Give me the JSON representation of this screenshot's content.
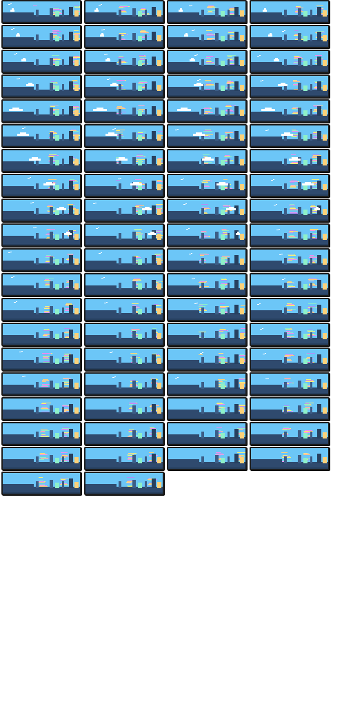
{
  "sprite_sheet": {
    "columns": 4,
    "frame_count": 78,
    "palette": {
      "sky": "#6cc6f7",
      "ground": "#2f4a6e",
      "ground_dark": "#27405f",
      "outline": "#1c1c1c",
      "building": "#3c5d86",
      "cloud": "#ffffff",
      "stripe_colors": [
        "#f28cf0",
        "#f7f27a",
        "#8ef0c8",
        "#fcd17a",
        "#b48cf7"
      ]
    },
    "frames": [
      {
        "cloud_size": 0.15,
        "cloud_pos": 0.1,
        "bird": true
      },
      {
        "cloud_size": 0.15,
        "cloud_pos": 0.12,
        "bird": true
      },
      {
        "cloud_size": 0.15,
        "cloud_pos": 0.14,
        "bird": true
      },
      {
        "cloud_size": 0.15,
        "cloud_pos": 0.16,
        "bird": false
      },
      {
        "cloud_size": 0.2,
        "cloud_pos": 0.18,
        "bird": true
      },
      {
        "cloud_size": 0.2,
        "cloud_pos": 0.2,
        "bird": true
      },
      {
        "cloud_size": 0.2,
        "cloud_pos": 0.22,
        "bird": true
      },
      {
        "cloud_size": 0.2,
        "cloud_pos": 0.24,
        "bird": true
      },
      {
        "cloud_size": 0.25,
        "cloud_pos": 0.26,
        "bird": true
      },
      {
        "cloud_size": 0.25,
        "cloud_pos": 0.28,
        "bird": true
      },
      {
        "cloud_size": 0.3,
        "cloud_pos": 0.3,
        "bird": true
      },
      {
        "cloud_size": 0.3,
        "cloud_pos": 0.32,
        "bird": true
      },
      {
        "cloud_size": 0.4,
        "cloud_pos": 0.34,
        "bird": true
      },
      {
        "cloud_size": 0.4,
        "cloud_pos": 0.36,
        "bird": true
      },
      {
        "cloud_size": 0.5,
        "cloud_pos": 0.38,
        "bird": true
      },
      {
        "cloud_size": 0.5,
        "cloud_pos": 0.4,
        "bird": true
      },
      {
        "cloud_size": 0.7,
        "cloud_pos": 0.1,
        "bird": false
      },
      {
        "cloud_size": 0.7,
        "cloud_pos": 0.12,
        "bird": false
      },
      {
        "cloud_size": 0.7,
        "cloud_pos": 0.14,
        "bird": false
      },
      {
        "cloud_size": 0.7,
        "cloud_pos": 0.16,
        "bird": false
      },
      {
        "cloud_size": 0.6,
        "cloud_pos": 0.22,
        "bird": true
      },
      {
        "cloud_size": 0.6,
        "cloud_pos": 0.3,
        "bird": true
      },
      {
        "cloud_size": 0.6,
        "cloud_pos": 0.38,
        "bird": true
      },
      {
        "cloud_size": 0.6,
        "cloud_pos": 0.46,
        "bird": true
      },
      {
        "cloud_size": 0.6,
        "cloud_pos": 0.4,
        "bird": false
      },
      {
        "cloud_size": 0.6,
        "cloud_pos": 0.46,
        "bird": false
      },
      {
        "cloud_size": 0.6,
        "cloud_pos": 0.52,
        "bird": false
      },
      {
        "cloud_size": 0.6,
        "cloud_pos": 0.58,
        "bird": false
      },
      {
        "cloud_size": 0.6,
        "cloud_pos": 0.62,
        "bird": true
      },
      {
        "cloud_size": 0.6,
        "cloud_pos": 0.68,
        "bird": true
      },
      {
        "cloud_size": 0.6,
        "cloud_pos": 0.74,
        "bird": true
      },
      {
        "cloud_size": 0.6,
        "cloud_pos": 0.78,
        "bird": true
      },
      {
        "cloud_size": 0.5,
        "cloud_pos": 0.8,
        "bird": true
      },
      {
        "cloud_size": 0.5,
        "cloud_pos": 0.84,
        "bird": true
      },
      {
        "cloud_size": 0.5,
        "cloud_pos": 0.86,
        "bird": true
      },
      {
        "cloud_size": 0.3,
        "cloud_pos": 0.88,
        "bird": true
      },
      {
        "cloud_size": 0.4,
        "cloud_pos": 0.88,
        "bird": true
      },
      {
        "cloud_size": 0.4,
        "cloud_pos": 0.9,
        "bird": true
      },
      {
        "cloud_size": 0.2,
        "cloud_pos": 0.92,
        "bird": true
      },
      {
        "cloud_size": 0.0,
        "cloud_pos": 0.0,
        "bird": true
      },
      {
        "cloud_size": 0.0,
        "cloud_pos": 0.0,
        "bird": true
      },
      {
        "cloud_size": 0.0,
        "cloud_pos": 0.0,
        "bird": true
      },
      {
        "cloud_size": 0.0,
        "cloud_pos": 0.0,
        "bird": true
      },
      {
        "cloud_size": 0.0,
        "cloud_pos": 0.0,
        "bird": true
      },
      {
        "cloud_size": 0.0,
        "cloud_pos": 0.0,
        "bird": true
      },
      {
        "cloud_size": 0.0,
        "cloud_pos": 0.0,
        "bird": true
      },
      {
        "cloud_size": 0.0,
        "cloud_pos": 0.0,
        "bird": true
      },
      {
        "cloud_size": 0.0,
        "cloud_pos": 0.0,
        "bird": true
      },
      {
        "cloud_size": 0.0,
        "cloud_pos": 0.0,
        "bird": true
      },
      {
        "cloud_size": 0.0,
        "cloud_pos": 0.0,
        "bird": true
      },
      {
        "cloud_size": 0.0,
        "cloud_pos": 0.0,
        "bird": true
      },
      {
        "cloud_size": 0.0,
        "cloud_pos": 0.0,
        "bird": true
      },
      {
        "cloud_size": 0.0,
        "cloud_pos": 0.0,
        "bird": false
      },
      {
        "cloud_size": 0.0,
        "cloud_pos": 0.0,
        "bird": false
      },
      {
        "cloud_size": 0.0,
        "cloud_pos": 0.0,
        "bird": false
      },
      {
        "cloud_size": 0.0,
        "cloud_pos": 0.0,
        "bird": true
      },
      {
        "cloud_size": 0.0,
        "cloud_pos": 0.0,
        "bird": true
      },
      {
        "cloud_size": 0.0,
        "cloud_pos": 0.0,
        "bird": true
      },
      {
        "cloud_size": 0.0,
        "cloud_pos": 0.0,
        "bird": true
      },
      {
        "cloud_size": 0.0,
        "cloud_pos": 0.0,
        "bird": true
      },
      {
        "cloud_size": 0.0,
        "cloud_pos": 0.0,
        "bird": true
      },
      {
        "cloud_size": 0.0,
        "cloud_pos": 0.0,
        "bird": true
      },
      {
        "cloud_size": 0.0,
        "cloud_pos": 0.0,
        "bird": true
      },
      {
        "cloud_size": 0.0,
        "cloud_pos": 0.0,
        "bird": true
      },
      {
        "cloud_size": 0.0,
        "cloud_pos": 0.0,
        "bird": false
      },
      {
        "cloud_size": 0.0,
        "cloud_pos": 0.0,
        "bird": false
      },
      {
        "cloud_size": 0.0,
        "cloud_pos": 0.0,
        "bird": false
      },
      {
        "cloud_size": 0.0,
        "cloud_pos": 0.0,
        "bird": false
      },
      {
        "cloud_size": 0.0,
        "cloud_pos": 0.0,
        "bird": false
      },
      {
        "cloud_size": 0.0,
        "cloud_pos": 0.0,
        "bird": false
      },
      {
        "cloud_size": 0.0,
        "cloud_pos": 0.0,
        "bird": false
      },
      {
        "cloud_size": 0.0,
        "cloud_pos": 0.0,
        "bird": false
      },
      {
        "cloud_size": 0.0,
        "cloud_pos": 0.0,
        "bird": false
      },
      {
        "cloud_size": 0.0,
        "cloud_pos": 0.0,
        "bird": false
      },
      {
        "cloud_size": 0.0,
        "cloud_pos": 0.0,
        "bird": false
      },
      {
        "cloud_size": 0.0,
        "cloud_pos": 0.0,
        "bird": false
      },
      {
        "cloud_size": 0.0,
        "cloud_pos": 0.0,
        "bird": false
      },
      {
        "cloud_size": 0.0,
        "cloud_pos": 0.0,
        "bird": false
      }
    ]
  }
}
